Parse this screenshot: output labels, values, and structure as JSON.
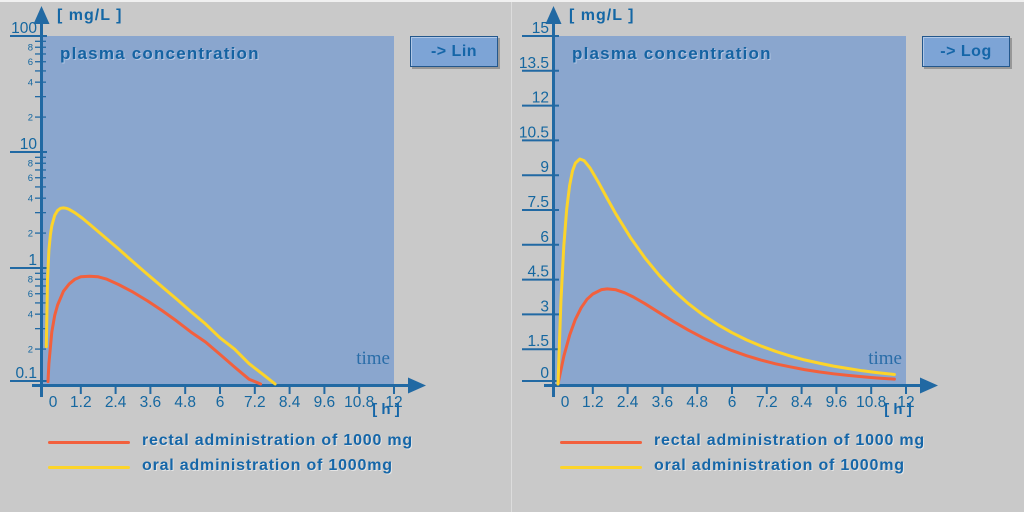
{
  "colors": {
    "page_bg": "#c9c9c9",
    "plot_bg": "#8aa6ce",
    "axis": "#2169a3",
    "text": "#1567a0",
    "button_bg": "#7da4d6",
    "button_border": "#23578c",
    "rectal_series": "#f2603d",
    "oral_series": "#fcd42a"
  },
  "chart_data": [
    {
      "type": "line",
      "title": "plasma concentration",
      "y_unit_label": "[ mg/L ]",
      "x_unit_label": "[ h ]",
      "x_annotation": "time",
      "toggle_button_label": "-> Lin",
      "y_scale": "log",
      "ylim": [
        0.1,
        100
      ],
      "xlim": [
        0,
        12
      ],
      "x_ticks": [
        0,
        1.2,
        2.4,
        3.6,
        4.8,
        6,
        7.2,
        8.4,
        9.6,
        10.8,
        12
      ],
      "x_tick_labels": [
        "0",
        "1.2",
        "2.4",
        "3.6",
        "4.8",
        "6",
        "7.2",
        "8.4",
        "9.6",
        "10.8",
        "12"
      ],
      "y_ticks": [
        0.1,
        1,
        10,
        100
      ],
      "y_tick_labels": [
        "0.1",
        "1",
        "10",
        "100"
      ],
      "y_minor_tick_digits": [
        2,
        3,
        4,
        5,
        6,
        7,
        8,
        9
      ],
      "y_minor_labeled_digits": [
        2,
        4,
        6,
        8
      ],
      "grid": false,
      "legend_position": "bottom-left",
      "series": [
        {
          "name": "rectal administration of 1000 mg",
          "color": "#f2603d",
          "points": [
            [
              0.07,
              0.105
            ],
            [
              0.1,
              0.15
            ],
            [
              0.2,
              0.28
            ],
            [
              0.3,
              0.39
            ],
            [
              0.4,
              0.48
            ],
            [
              0.6,
              0.63
            ],
            [
              0.8,
              0.73
            ],
            [
              1.0,
              0.8
            ],
            [
              1.2,
              0.84
            ],
            [
              1.5,
              0.85
            ],
            [
              1.8,
              0.84
            ],
            [
              2.1,
              0.8
            ],
            [
              2.5,
              0.72
            ],
            [
              3,
              0.62
            ],
            [
              3.5,
              0.52
            ],
            [
              4,
              0.43
            ],
            [
              4.5,
              0.35
            ],
            [
              5,
              0.28
            ],
            [
              5.5,
              0.23
            ],
            [
              6,
              0.18
            ],
            [
              6.5,
              0.14
            ],
            [
              7,
              0.11
            ],
            [
              7.4,
              0.1
            ]
          ]
        },
        {
          "name": "oral administration of 1000mg",
          "color": "#fcd42a",
          "points": [
            [
              0.012,
              0.21
            ],
            [
              0.05,
              0.79
            ],
            [
              0.1,
              1.43
            ],
            [
              0.15,
              1.93
            ],
            [
              0.2,
              2.31
            ],
            [
              0.3,
              2.84
            ],
            [
              0.4,
              3.13
            ],
            [
              0.5,
              3.27
            ],
            [
              0.6,
              3.3
            ],
            [
              0.7,
              3.27
            ],
            [
              0.8,
              3.2
            ],
            [
              1.0,
              2.99
            ],
            [
              1.25,
              2.69
            ],
            [
              1.5,
              2.39
            ],
            [
              2,
              1.87
            ],
            [
              2.5,
              1.46
            ],
            [
              3,
              1.13
            ],
            [
              3.5,
              0.88
            ],
            [
              4,
              0.69
            ],
            [
              4.5,
              0.54
            ],
            [
              5,
              0.42
            ],
            [
              5.5,
              0.33
            ],
            [
              6,
              0.25
            ],
            [
              6.5,
              0.2
            ],
            [
              7,
              0.15
            ],
            [
              7.5,
              0.12
            ],
            [
              7.9,
              0.1
            ]
          ]
        }
      ]
    },
    {
      "type": "line",
      "title": "plasma concentration",
      "y_unit_label": "[ mg/L ]",
      "x_unit_label": "[ h ]",
      "x_annotation": "time",
      "toggle_button_label": "-> Log",
      "y_scale": "linear",
      "ylim": [
        0,
        15
      ],
      "xlim": [
        0,
        12
      ],
      "x_ticks": [
        0,
        1.2,
        2.4,
        3.6,
        4.8,
        6,
        7.2,
        8.4,
        9.6,
        10.8,
        12
      ],
      "x_tick_labels": [
        "0",
        "1.2",
        "2.4",
        "3.6",
        "4.8",
        "6",
        "7.2",
        "8.4",
        "9.6",
        "10.8",
        "12"
      ],
      "y_ticks": [
        0,
        1.5,
        3,
        4.5,
        6,
        7.5,
        9,
        10.5,
        12,
        13.5,
        15
      ],
      "y_tick_labels": [
        "0",
        "1.5",
        "3",
        "4.5",
        "6",
        "7.5",
        "9",
        "10.5",
        "12",
        "13.5",
        "15"
      ],
      "y_minor_tick_digits": [],
      "y_minor_labeled_digits": [],
      "grid": false,
      "legend_position": "bottom-left",
      "series": [
        {
          "name": "rectal administration of 1000 mg",
          "color": "#f2603d",
          "points": [
            [
              0,
              0
            ],
            [
              0.2,
              1.19
            ],
            [
              0.4,
              2.1
            ],
            [
              0.6,
              2.79
            ],
            [
              0.8,
              3.29
            ],
            [
              1.0,
              3.65
            ],
            [
              1.2,
              3.88
            ],
            [
              1.5,
              4.07
            ],
            [
              1.7,
              4.1
            ],
            [
              2,
              4.06
            ],
            [
              2.3,
              3.93
            ],
            [
              2.6,
              3.75
            ],
            [
              3,
              3.46
            ],
            [
              3.5,
              3.07
            ],
            [
              4,
              2.68
            ],
            [
              4.5,
              2.32
            ],
            [
              5,
              1.99
            ],
            [
              5.5,
              1.7
            ],
            [
              6,
              1.44
            ],
            [
              6.5,
              1.22
            ],
            [
              7,
              1.03
            ],
            [
              7.5,
              0.87
            ],
            [
              8,
              0.74
            ],
            [
              8.5,
              0.62
            ],
            [
              9,
              0.52
            ],
            [
              9.5,
              0.44
            ],
            [
              10,
              0.37
            ],
            [
              10.5,
              0.31
            ],
            [
              11,
              0.26
            ],
            [
              11.6,
              0.21
            ]
          ]
        },
        {
          "name": "oral administration of 1000mg",
          "color": "#fcd42a",
          "points": [
            [
              0,
              0
            ],
            [
              0.1,
              3.55
            ],
            [
              0.2,
              5.95
            ],
            [
              0.3,
              7.54
            ],
            [
              0.4,
              8.55
            ],
            [
              0.5,
              9.18
            ],
            [
              0.6,
              9.52
            ],
            [
              0.75,
              9.7
            ],
            [
              0.9,
              9.63
            ],
            [
              1.1,
              9.32
            ],
            [
              1.4,
              8.68
            ],
            [
              1.7,
              7.99
            ],
            [
              2,
              7.32
            ],
            [
              2.5,
              6.31
            ],
            [
              3,
              5.43
            ],
            [
              3.5,
              4.67
            ],
            [
              4,
              4.02
            ],
            [
              4.5,
              3.46
            ],
            [
              5,
              2.98
            ],
            [
              5.5,
              2.57
            ],
            [
              6,
              2.21
            ],
            [
              6.5,
              1.9
            ],
            [
              7,
              1.64
            ],
            [
              7.5,
              1.41
            ],
            [
              8,
              1.21
            ],
            [
              8.5,
              1.04
            ],
            [
              9,
              0.9
            ],
            [
              9.5,
              0.77
            ],
            [
              10,
              0.67
            ],
            [
              10.5,
              0.57
            ],
            [
              11,
              0.49
            ],
            [
              11.6,
              0.41
            ]
          ]
        }
      ]
    }
  ]
}
